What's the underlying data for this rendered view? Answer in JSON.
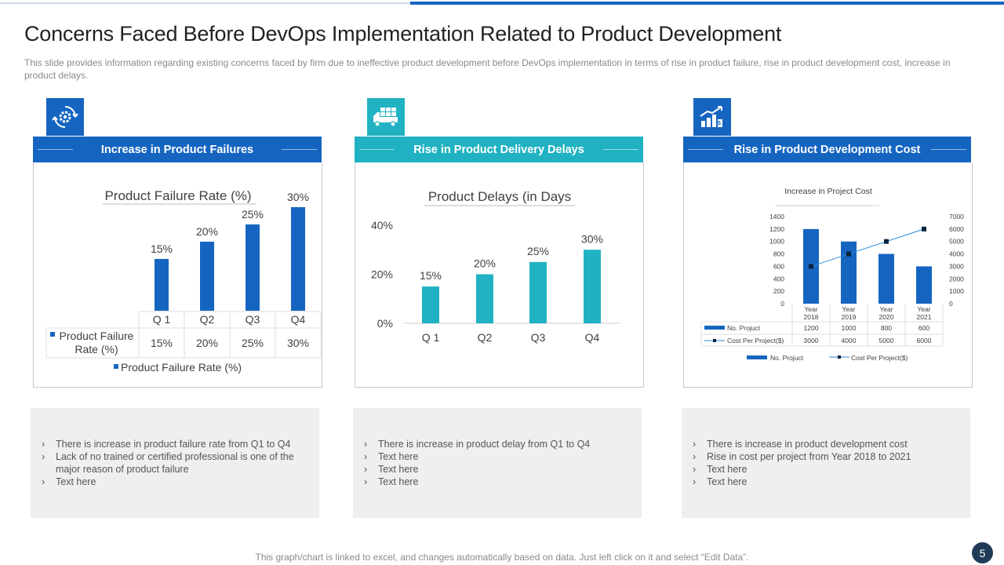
{
  "title": "Concerns Faced Before DevOps Implementation Related to Product Development",
  "subtitle": "This slide provides information regarding existing concerns faced by firm due to ineffective product development before DevOps implementation in terms of rise in product failure, rise in product development cost, increase in product delays.",
  "colors": {
    "blue": "#1565c0",
    "teal": "#20b2c2",
    "navy": "#0a2240",
    "note_bg": "#efefef"
  },
  "panels": [
    {
      "heading": "Increase in Product Failures",
      "icon": "gear-cycle-icon",
      "notes": [
        "There is increase in product failure rate from Q1 to Q4",
        "Lack of no trained or certified professional  is one of the major reason of product failure",
        "Text here"
      ]
    },
    {
      "heading": "Rise in Product Delivery Delays",
      "icon": "delivery-truck-icon",
      "notes": [
        "There is increase in product delay from Q1 to Q4",
        "Text here",
        "Text here",
        "Text here"
      ]
    },
    {
      "heading": "Rise in Product Development Cost",
      "icon": "cost-growth-chart-icon",
      "notes": [
        "There is increase in product development  cost",
        "Rise in cost per project from Year 2018 to 2021",
        "Text here",
        "Text here"
      ]
    }
  ],
  "chart_data": [
    {
      "type": "bar",
      "title": "Product Failure Rate (%)",
      "categories": [
        "Q 1",
        "Q2",
        "Q3",
        "Q4"
      ],
      "values": [
        15,
        20,
        25,
        30
      ],
      "value_labels": [
        "15%",
        "20%",
        "25%",
        "30%"
      ],
      "series": [
        {
          "name": "Product Failure Rate (%)",
          "values": [
            15,
            20,
            25,
            30
          ]
        }
      ],
      "table_row_label": [
        "Product Failure",
        "Rate (%)"
      ],
      "legend": "Product Failure Rate (%)",
      "ylim": [
        0,
        35
      ],
      "legend_position": "bottom"
    },
    {
      "type": "bar",
      "title": "Product Delays (in Days",
      "categories": [
        "Q 1",
        "Q2",
        "Q3",
        "Q4"
      ],
      "values": [
        15,
        20,
        25,
        30
      ],
      "value_labels": [
        "15%",
        "20%",
        "25%",
        "30%"
      ],
      "ylim": [
        0,
        40
      ],
      "yticks": [
        "0%",
        "20%",
        "40%"
      ]
    },
    {
      "type": "bar",
      "title": "Increase in Project Cost",
      "categories": [
        [
          "Year",
          "2018"
        ],
        [
          "Year",
          "2019"
        ],
        [
          "Year",
          "2020"
        ],
        [
          "Year",
          "2021"
        ]
      ],
      "series": [
        {
          "name": "No. Projuct",
          "type": "bar",
          "axis": "left",
          "values": [
            1200,
            1000,
            800,
            600
          ],
          "labels": [
            "1200",
            "1000",
            "800",
            "600"
          ]
        },
        {
          "name": "Cost Per Project($)",
          "type": "line",
          "axis": "right",
          "values": [
            3000,
            4000,
            5000,
            6000
          ],
          "labels": [
            "3000",
            "4000",
            "5000",
            "6000"
          ]
        }
      ],
      "ylim_left": [
        0,
        1400
      ],
      "yticks_left": [
        "0",
        "200",
        "400",
        "600",
        "800",
        "1000",
        "1200",
        "1400"
      ],
      "ylim_right": [
        0,
        7000
      ],
      "yticks_right": [
        "0",
        "1000",
        "2000",
        "3000",
        "4000",
        "5000",
        "6000",
        "7000"
      ],
      "legend": [
        "No. Projuct",
        "Cost Per Project($)"
      ],
      "legend_position": "bottom"
    }
  ],
  "footer": "This graph/chart is linked to excel, and changes automatically based on data. Just left click on it and select “Edit Data”.",
  "page_number": "5"
}
